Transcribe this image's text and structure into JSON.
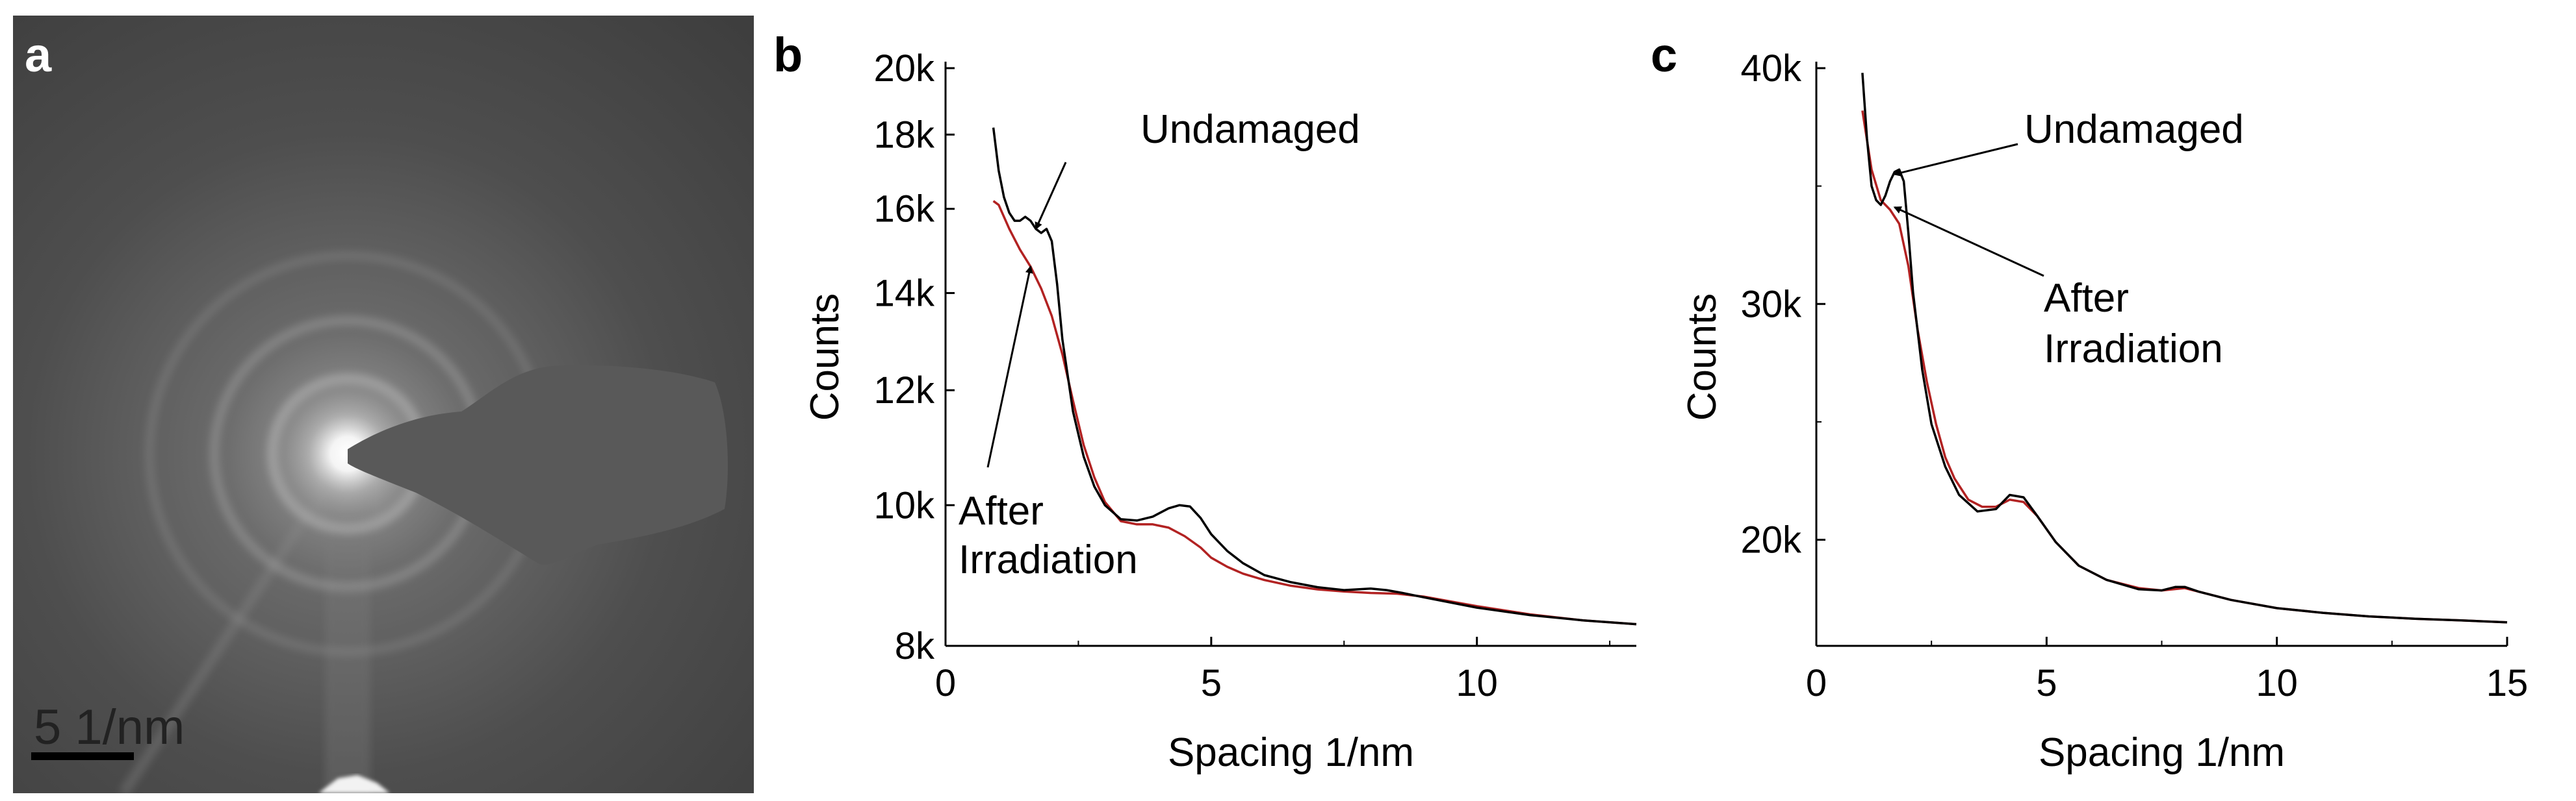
{
  "panel_a": {
    "label": "a",
    "scale_bar_label": "5 1/nm",
    "image_description": "electron diffraction pattern"
  },
  "chart_data": [
    {
      "panel": "b",
      "type": "line",
      "title": "",
      "xlabel": "Spacing  1/nm",
      "ylabel": "Counts",
      "xlim": [
        0,
        13
      ],
      "ylim": [
        8000,
        20000
      ],
      "yscale": "log",
      "xticks": [
        0,
        5,
        10
      ],
      "xtick_labels": [
        "0",
        "5",
        "10"
      ],
      "yticks": [
        8000,
        10000,
        12000,
        14000,
        16000,
        18000,
        20000
      ],
      "ytick_labels": [
        "8k",
        "10k",
        "12k",
        "14k",
        "16k",
        "18k",
        "20k"
      ],
      "series": [
        {
          "name": "Undamaged",
          "color": "#000000",
          "x": [
            0.9,
            1.0,
            1.1,
            1.2,
            1.3,
            1.4,
            1.5,
            1.6,
            1.7,
            1.8,
            1.9,
            2.0,
            2.1,
            2.2,
            2.4,
            2.6,
            2.8,
            3.0,
            3.3,
            3.6,
            3.9,
            4.2,
            4.4,
            4.6,
            4.8,
            5.0,
            5.3,
            5.6,
            6.0,
            6.5,
            7.0,
            7.5,
            8.0,
            8.3,
            8.6,
            9.0,
            10.0,
            11.0,
            12.0,
            13.0
          ],
          "values": [
            18200,
            17000,
            16300,
            15900,
            15700,
            15700,
            15800,
            15700,
            15500,
            15400,
            15500,
            15200,
            14200,
            13000,
            11600,
            10800,
            10300,
            10000,
            9780,
            9760,
            9820,
            9950,
            10000,
            9980,
            9800,
            9550,
            9300,
            9120,
            8950,
            8850,
            8780,
            8740,
            8760,
            8740,
            8700,
            8640,
            8500,
            8400,
            8330,
            8280
          ]
        },
        {
          "name": "After Irradiation",
          "color": "#b22222",
          "x": [
            0.9,
            1.0,
            1.2,
            1.4,
            1.6,
            1.8,
            2.0,
            2.2,
            2.4,
            2.6,
            2.8,
            3.0,
            3.3,
            3.6,
            3.9,
            4.2,
            4.5,
            4.8,
            5.0,
            5.3,
            5.6,
            6.0,
            6.5,
            7.0,
            7.5,
            8.0,
            8.5,
            9.0,
            10.0,
            11.0,
            12.0,
            13.0
          ],
          "values": [
            16200,
            16100,
            15500,
            15000,
            14600,
            14100,
            13500,
            12700,
            11800,
            11000,
            10450,
            10050,
            9750,
            9700,
            9700,
            9650,
            9520,
            9350,
            9200,
            9070,
            8970,
            8880,
            8800,
            8750,
            8720,
            8700,
            8690,
            8650,
            8520,
            8410,
            8330,
            8280
          ]
        }
      ],
      "annotations": [
        {
          "text": "Undamaged",
          "lines": [
            "Undamaged"
          ],
          "points_to": [
            1.7,
            15500
          ]
        },
        {
          "text": "After Irradiation",
          "lines": [
            "After",
            "Irradiation"
          ],
          "points_to": [
            1.6,
            14600
          ]
        }
      ]
    },
    {
      "panel": "c",
      "type": "line",
      "title": "",
      "xlabel": "Spacing  1/nm",
      "ylabel": "Counts",
      "xlim": [
        0,
        15
      ],
      "ylim": [
        15500,
        40000
      ],
      "yscale": "linear",
      "xticks": [
        0,
        5,
        10,
        15
      ],
      "xtick_labels": [
        "0",
        "5",
        "10",
        "15"
      ],
      "yticks": [
        20000,
        30000,
        40000
      ],
      "ytick_labels": [
        "20k",
        "30k",
        "40k"
      ],
      "series": [
        {
          "name": "Undamaged",
          "color": "#000000",
          "x": [
            1.0,
            1.1,
            1.2,
            1.3,
            1.4,
            1.5,
            1.6,
            1.7,
            1.8,
            1.9,
            2.0,
            2.1,
            2.3,
            2.5,
            2.8,
            3.1,
            3.5,
            3.9,
            4.2,
            4.5,
            4.8,
            5.2,
            5.7,
            6.3,
            7.0,
            7.5,
            7.8,
            8.0,
            8.3,
            9.0,
            10.0,
            11.0,
            12.0,
            13.0,
            14.0,
            15.0
          ],
          "values": [
            39800,
            37000,
            35000,
            34400,
            34200,
            34600,
            35200,
            35600,
            35700,
            35200,
            33000,
            30500,
            27200,
            24900,
            23100,
            21900,
            21200,
            21300,
            21900,
            21800,
            21000,
            19900,
            18900,
            18300,
            17900,
            17850,
            18000,
            18000,
            17800,
            17450,
            17100,
            16900,
            16750,
            16650,
            16580,
            16500
          ]
        },
        {
          "name": "After Irradiation",
          "color": "#b22222",
          "x": [
            1.0,
            1.2,
            1.4,
            1.6,
            1.8,
            2.0,
            2.2,
            2.4,
            2.6,
            2.8,
            3.0,
            3.3,
            3.6,
            3.9,
            4.2,
            4.5,
            4.8,
            5.2,
            5.7,
            6.3,
            7.0,
            7.5,
            8.0,
            8.5,
            9.0,
            10.0,
            11.0,
            12.0,
            13.0,
            14.0,
            15.0
          ],
          "values": [
            38200,
            35700,
            34400,
            34000,
            33400,
            31600,
            28900,
            26700,
            24900,
            23500,
            22600,
            21700,
            21400,
            21400,
            21700,
            21600,
            21000,
            19900,
            18900,
            18300,
            17950,
            17850,
            17950,
            17700,
            17450,
            17100,
            16900,
            16750,
            16650,
            16580,
            16500
          ]
        }
      ],
      "annotations": [
        {
          "text": "Undamaged",
          "lines": [
            "Undamaged"
          ],
          "points_to": [
            1.7,
            35500
          ]
        },
        {
          "text": "After Irradiation",
          "lines": [
            "After",
            "Irradiation"
          ],
          "points_to": [
            1.7,
            34100
          ]
        }
      ]
    }
  ]
}
